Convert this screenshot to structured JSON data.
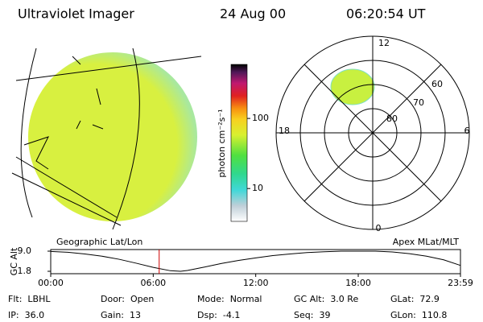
{
  "header": {
    "instrument": "Ultraviolet Imager",
    "date": "24 Aug 00",
    "time": "06:20:54 UT"
  },
  "colorbar": {
    "label": "photon cm⁻²s⁻¹",
    "ylim": [
      3.4,
      590
    ],
    "log": true,
    "yticks": [
      10,
      100
    ]
  },
  "polar": {
    "mlt_labels": [
      "12",
      "18",
      "6",
      "0"
    ],
    "lat_labels": [
      "80",
      "70",
      "60"
    ]
  },
  "orbit": {
    "type": "line",
    "left_label": "Geographic Lat/Lon",
    "right_label": "Apex MLat/MLT",
    "ylabel": "GC Alt",
    "color": "#000000",
    "x": [
      0,
      1,
      2,
      3,
      4,
      5,
      6,
      7,
      7.6,
      8,
      9,
      10,
      11,
      12,
      13,
      14,
      15,
      16,
      17,
      18,
      19,
      20,
      21,
      22,
      23,
      23.98
    ],
    "values": [
      8.9,
      8.6,
      8.0,
      7.2,
      6.1,
      4.7,
      3.2,
      2.0,
      1.8,
      2.1,
      3.3,
      4.6,
      5.7,
      6.6,
      7.4,
      8.0,
      8.5,
      8.8,
      9.0,
      9.0,
      9.0,
      8.7,
      8.1,
      7.2,
      5.9,
      3.9
    ],
    "ylim": [
      1.8,
      9.0
    ],
    "yticks": [
      {
        "value": 9,
        "label": "9.0"
      },
      1.8
    ],
    "xlim": [
      0,
      23.983
    ],
    "xticks": [
      {
        "value": 0,
        "label": "00:00"
      },
      {
        "value": 6,
        "label": "06:00"
      },
      {
        "value": 12,
        "label": "12:00"
      },
      {
        "value": 18,
        "label": "18:00"
      },
      {
        "value": 23.983,
        "label": "23:59"
      }
    ],
    "current_time": 6.348,
    "current_color": "#cc0000"
  },
  "info": [
    [
      {
        "label": "Flt:",
        "value": "LBHL"
      },
      {
        "label": "Door:",
        "value": "Open"
      },
      {
        "label": "Mode:",
        "value": "Normal"
      },
      {
        "label": "GC Alt:",
        "value": "3.0 Re"
      },
      {
        "label": "GLat:",
        "value": "72.9"
      }
    ],
    [
      {
        "label": "IP:",
        "value": "36.0"
      },
      {
        "label": "Gain:",
        "value": "13"
      },
      {
        "label": "Dsp:",
        "value": "-4.1"
      },
      {
        "label": "Seq:",
        "value": "39"
      },
      {
        "label": "GLon:",
        "value": "110.8"
      }
    ]
  ]
}
